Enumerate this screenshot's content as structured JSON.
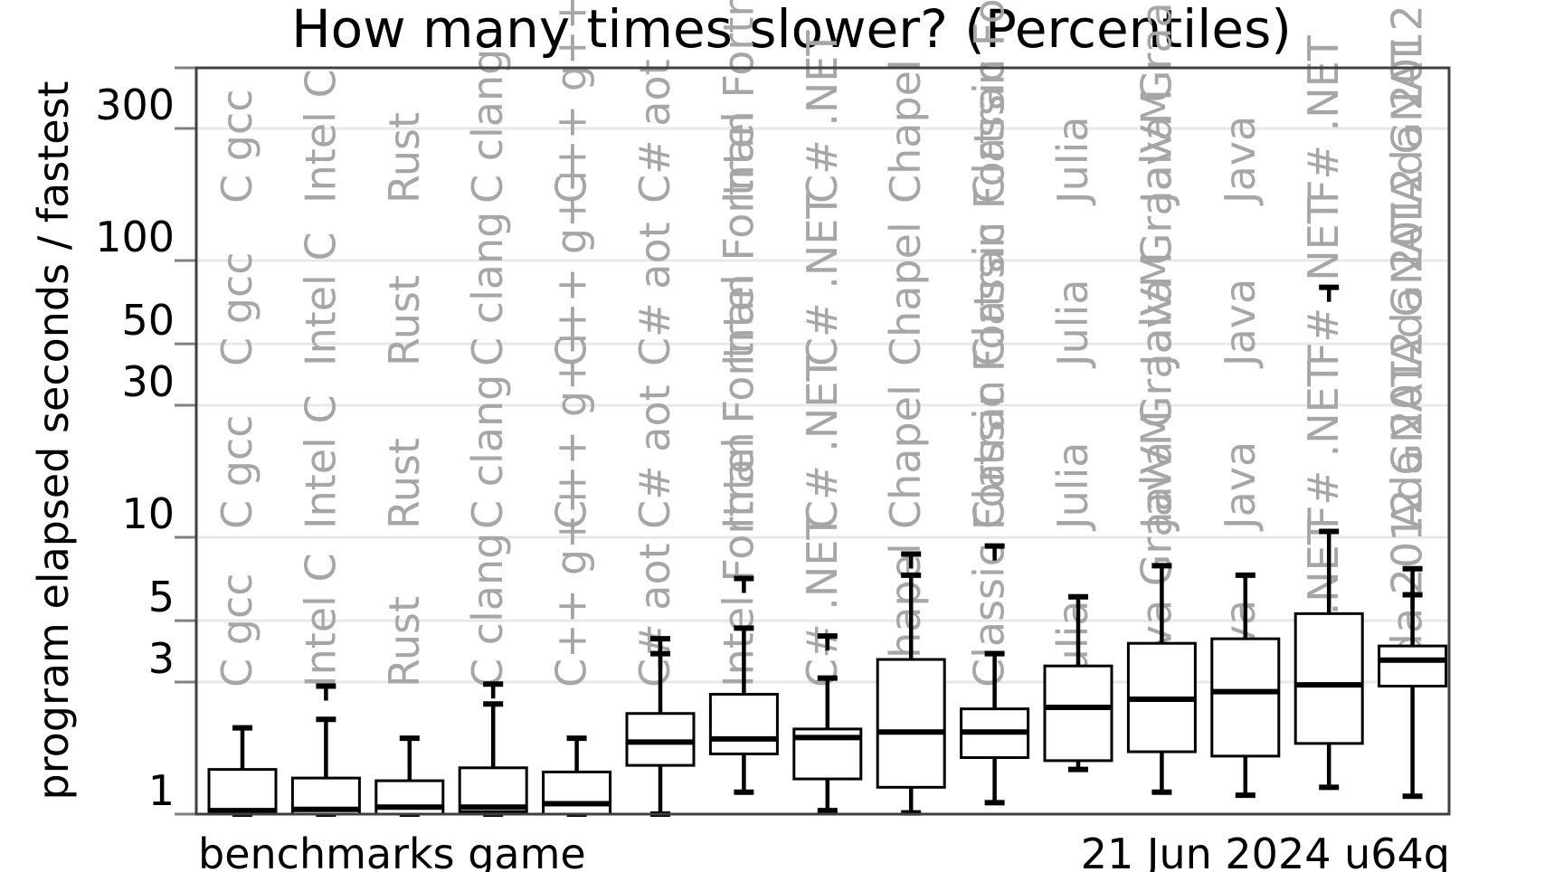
{
  "chart_data": {
    "type": "box",
    "title": "How many times slower? (Percentiles)",
    "ylabel": "program elapsed seconds / fastest",
    "yscale": "log",
    "ylim": [
      1,
      400
    ],
    "yticks": [
      1,
      3,
      5,
      10,
      30,
      50,
      100,
      300
    ],
    "grid": true,
    "legend": "none",
    "footer_left": "benchmarks game",
    "footer_right": "21 Jun 2024 u64q",
    "colors": {
      "box_stroke": "#000000",
      "label": "#a6a6a6",
      "grid": "#e8e8e8"
    },
    "categories": [
      {
        "name": "C gcc",
        "whisker_low": 1.0,
        "q1": 1.0,
        "median": 1.03,
        "q3": 1.45,
        "whisker_high": 2.05,
        "outliers": []
      },
      {
        "name": "Intel C",
        "whisker_low": 1.0,
        "q1": 1.0,
        "median": 1.04,
        "q3": 1.35,
        "whisker_high": 2.2,
        "outliers": [
          2.9
        ]
      },
      {
        "name": "Rust",
        "whisker_low": 1.0,
        "q1": 1.0,
        "median": 1.06,
        "q3": 1.32,
        "whisker_high": 1.88,
        "outliers": []
      },
      {
        "name": "C clang",
        "whisker_low": 1.0,
        "q1": 1.02,
        "median": 1.06,
        "q3": 1.47,
        "whisker_high": 2.5,
        "outliers": [
          2.95
        ]
      },
      {
        "name": "C++ g++",
        "whisker_low": 1.0,
        "q1": 1.0,
        "median": 1.09,
        "q3": 1.42,
        "whisker_high": 1.88,
        "outliers": []
      },
      {
        "name": "C# aot",
        "whisker_low": 1.0,
        "q1": 1.5,
        "median": 1.82,
        "q3": 2.31,
        "whisker_high": 4.3,
        "outliers": [
          3.8
        ]
      },
      {
        "name": "Intel Fortran",
        "whisker_low": 1.2,
        "q1": 1.65,
        "median": 1.87,
        "q3": 2.71,
        "whisker_high": 4.7,
        "outliers": [
          7.1
        ]
      },
      {
        "name": "C# .NET",
        "whisker_low": 1.03,
        "q1": 1.34,
        "median": 1.89,
        "q3": 2.03,
        "whisker_high": 3.1,
        "outliers": [
          4.4
        ]
      },
      {
        "name": "Chapel",
        "whisker_low": 1.01,
        "q1": 1.25,
        "median": 1.98,
        "q3": 3.62,
        "whisker_high": 7.3,
        "outliers": [
          8.7
        ]
      },
      {
        "name": "Classic Fortran",
        "whisker_low": 1.1,
        "q1": 1.6,
        "median": 1.98,
        "q3": 2.4,
        "whisker_high": 3.8,
        "outliers": [
          9.3
        ]
      },
      {
        "name": "Julia",
        "whisker_low": 1.45,
        "q1": 1.56,
        "median": 2.43,
        "q3": 3.43,
        "whisker_high": 6.1,
        "outliers": []
      },
      {
        "name": "Java GraalVM",
        "whisker_low": 1.2,
        "q1": 1.68,
        "median": 2.6,
        "q3": 4.14,
        "whisker_high": 7.9,
        "outliers": []
      },
      {
        "name": "Java",
        "whisker_low": 1.17,
        "q1": 1.62,
        "median": 2.77,
        "q3": 4.3,
        "whisker_high": 7.3,
        "outliers": []
      },
      {
        "name": "F# .NET",
        "whisker_low": 1.25,
        "q1": 1.8,
        "median": 2.93,
        "q3": 5.3,
        "whisker_high": 10.5,
        "outliers": [
          80
        ]
      },
      {
        "name": "Ada 2012 GNAT",
        "whisker_low": 1.16,
        "q1": 2.9,
        "median": 3.6,
        "q3": 4.05,
        "whisker_high": 7.7,
        "outliers": [
          6.2
        ]
      }
    ]
  }
}
